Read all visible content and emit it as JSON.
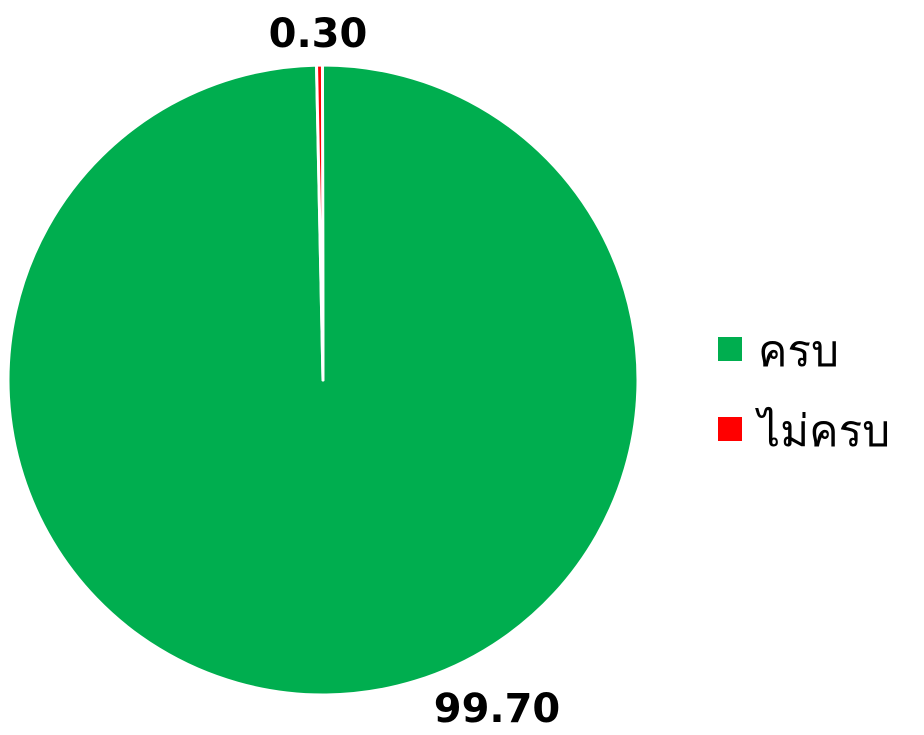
{
  "chart_data": {
    "type": "pie",
    "title": "",
    "categories": [
      "ครบ",
      "ไม่ครบ"
    ],
    "values": [
      99.7,
      0.3
    ],
    "data_labels": [
      "99.70",
      "0.30"
    ],
    "colors": [
      "#00AE4F",
      "#FF0000"
    ],
    "legend_position": "right",
    "start_angle_deg": -0.1,
    "slice_border_color": "#FFFFFF"
  }
}
